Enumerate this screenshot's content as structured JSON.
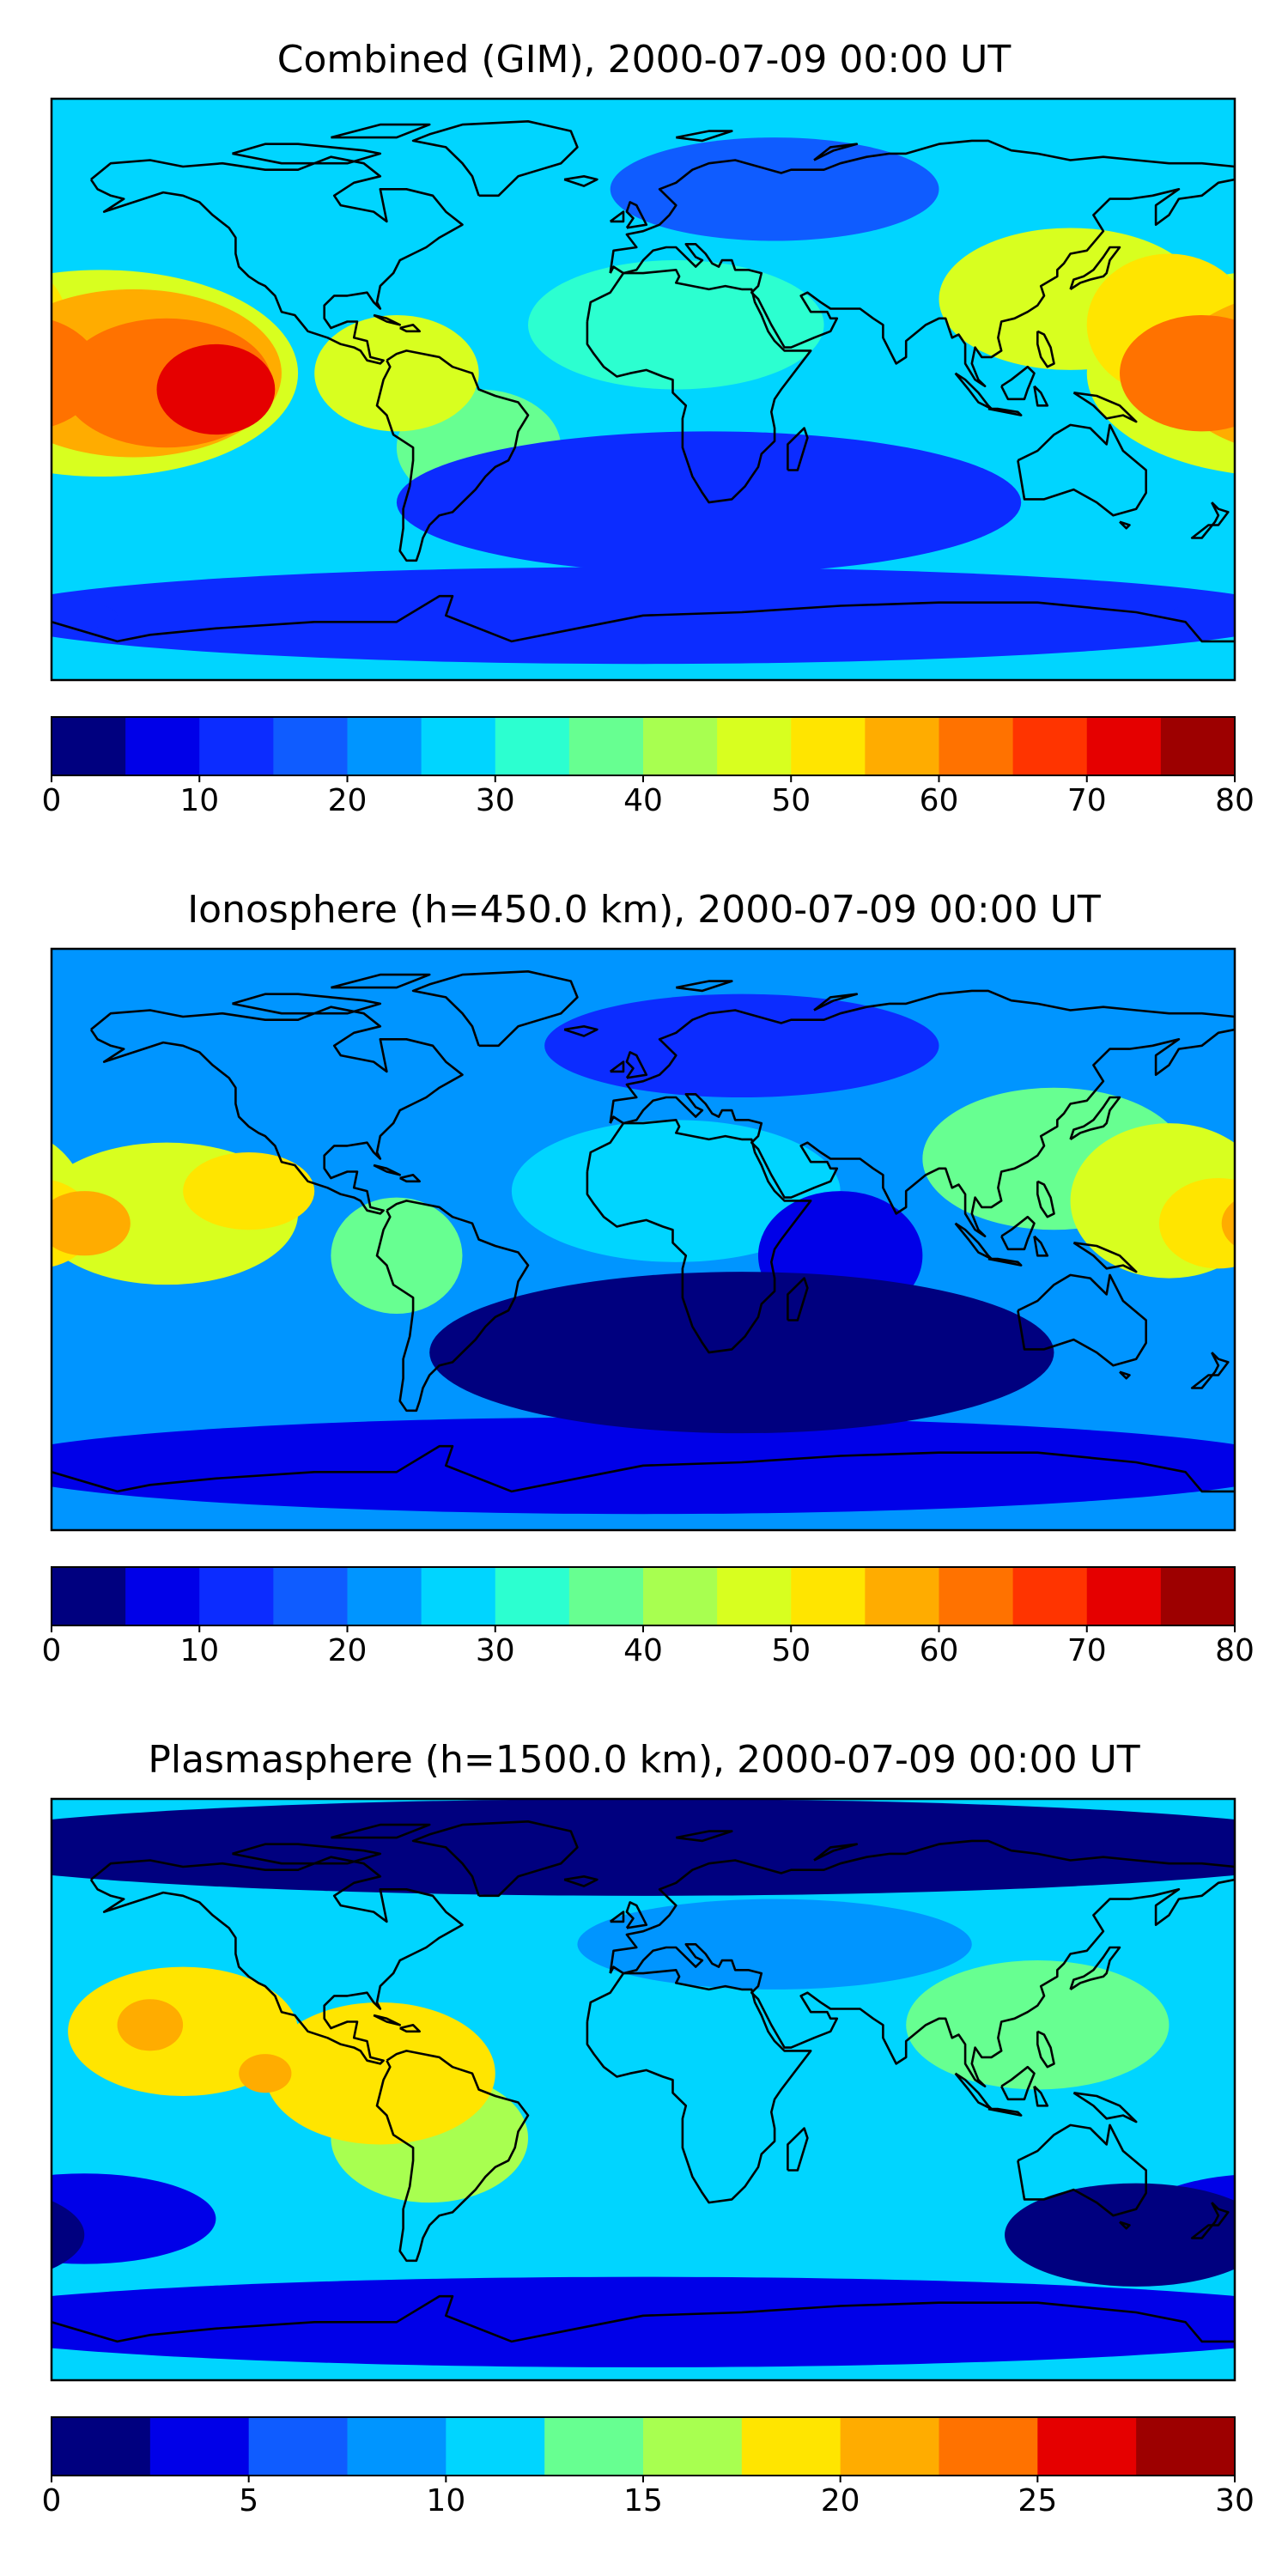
{
  "panels": [
    {
      "title": "Combined (GIM), 2000-07-09 00:00 UT",
      "colorbar": {
        "ticks": [
          "0",
          "10",
          "20",
          "30",
          "40",
          "50",
          "60",
          "70",
          "80"
        ],
        "range": [
          0,
          80
        ],
        "step": 5
      },
      "field": {
        "background_level": 27,
        "blobs": [
          {
            "lon": -130,
            "lat": 0,
            "level": 70,
            "rx": 18,
            "ry": 14
          },
          {
            "lon": -130,
            "lat": 0,
            "level": 72,
            "rx": 10,
            "ry": 8
          },
          {
            "lon": -145,
            "lat": 2,
            "level": 62,
            "rx": 32,
            "ry": 20
          },
          {
            "lon": -155,
            "lat": 5,
            "level": 55,
            "rx": 45,
            "ry": 26
          },
          {
            "lon": -165,
            "lat": 5,
            "level": 48,
            "rx": 60,
            "ry": 32
          },
          {
            "lon": -75,
            "lat": 5,
            "level": 46,
            "rx": 25,
            "ry": 18
          },
          {
            "lon": -50,
            "lat": -18,
            "level": 38,
            "rx": 25,
            "ry": 18
          },
          {
            "lon": 170,
            "lat": 5,
            "level": 62,
            "rx": 25,
            "ry": 18
          },
          {
            "lon": 160,
            "lat": 20,
            "level": 52,
            "rx": 25,
            "ry": 22
          },
          {
            "lon": 130,
            "lat": 28,
            "level": 45,
            "rx": 40,
            "ry": 22
          },
          {
            "lon": 10,
            "lat": 20,
            "level": 32,
            "rx": 45,
            "ry": 20
          },
          {
            "lon": 20,
            "lat": -35,
            "level": 14,
            "rx": 95,
            "ry": 22
          },
          {
            "lon": 0,
            "lat": -70,
            "level": 10,
            "rx": 200,
            "ry": 15
          },
          {
            "lon": 40,
            "lat": 62,
            "level": 18,
            "rx": 50,
            "ry": 16
          }
        ]
      }
    },
    {
      "title": "Ionosphere  (h=450.0 km), 2000-07-09 00:00 UT",
      "colorbar": {
        "ticks": [
          "0",
          "10",
          "20",
          "30",
          "40",
          "50",
          "60",
          "70",
          "80"
        ],
        "range": [
          0,
          80
        ],
        "step": 5
      },
      "field": {
        "background_level": 24,
        "blobs": [
          {
            "lon": -170,
            "lat": 5,
            "level": 56,
            "rx": 14,
            "ry": 10
          },
          {
            "lon": -145,
            "lat": 8,
            "level": 48,
            "rx": 40,
            "ry": 22
          },
          {
            "lon": -120,
            "lat": 15,
            "level": 51,
            "rx": 20,
            "ry": 12
          },
          {
            "lon": -75,
            "lat": -5,
            "level": 38,
            "rx": 20,
            "ry": 18
          },
          {
            "lon": 175,
            "lat": 5,
            "level": 52,
            "rx": 18,
            "ry": 14
          },
          {
            "lon": 160,
            "lat": 12,
            "level": 45,
            "rx": 30,
            "ry": 24
          },
          {
            "lon": 125,
            "lat": 25,
            "level": 37,
            "rx": 40,
            "ry": 22
          },
          {
            "lon": 10,
            "lat": 15,
            "level": 28,
            "rx": 50,
            "ry": 22
          },
          {
            "lon": 30,
            "lat": -35,
            "level": 4,
            "rx": 95,
            "ry": 25
          },
          {
            "lon": 60,
            "lat": -5,
            "level": 6,
            "rx": 25,
            "ry": 20
          },
          {
            "lon": 0,
            "lat": -70,
            "level": 8,
            "rx": 200,
            "ry": 15
          },
          {
            "lon": 30,
            "lat": 60,
            "level": 14,
            "rx": 60,
            "ry": 16
          }
        ]
      }
    },
    {
      "title": "Plasmasphere (h=1500.0 km), 2000-07-09 00:00 UT",
      "colorbar": {
        "ticks": [
          "0",
          "5",
          "10",
          "15",
          "20",
          "25",
          "30"
        ],
        "range": [
          0,
          30
        ],
        "step": 2.5
      },
      "field": {
        "background_level": 11,
        "blobs": [
          {
            "lon": -150,
            "lat": 20,
            "level": 22,
            "rx": 10,
            "ry": 8
          },
          {
            "lon": -140,
            "lat": 18,
            "level": 19,
            "rx": 35,
            "ry": 20
          },
          {
            "lon": -115,
            "lat": 5,
            "level": 21,
            "rx": 8,
            "ry": 6
          },
          {
            "lon": -80,
            "lat": 5,
            "level": 19,
            "rx": 35,
            "ry": 22
          },
          {
            "lon": -65,
            "lat": -15,
            "level": 17,
            "rx": 30,
            "ry": 20
          },
          {
            "lon": 120,
            "lat": 20,
            "level": 14,
            "rx": 40,
            "ry": 20
          },
          {
            "lon": 0,
            "lat": 75,
            "level": 2,
            "rx": 220,
            "ry": 15
          },
          {
            "lon": 0,
            "lat": -72,
            "level": 3,
            "rx": 220,
            "ry": 14
          },
          {
            "lon": 150,
            "lat": -45,
            "level": 2,
            "rx": 40,
            "ry": 16
          },
          {
            "lon": -170,
            "lat": -40,
            "level": 3,
            "rx": 40,
            "ry": 14
          },
          {
            "lon": 40,
            "lat": 45,
            "level": 8,
            "rx": 60,
            "ry": 14
          }
        ]
      }
    }
  ],
  "palette": [
    "#00007f",
    "#0000e8",
    "#0c2cff",
    "#0f5cff",
    "#0095ff",
    "#00d5ff",
    "#2cffd0",
    "#67ff91",
    "#a8ff50",
    "#d8ff1f",
    "#ffe500",
    "#ffac00",
    "#ff7200",
    "#ff3400",
    "#e50000",
    "#9d0000"
  ],
  "colors": {
    "coastline": "#000000",
    "frame": "#000000"
  }
}
